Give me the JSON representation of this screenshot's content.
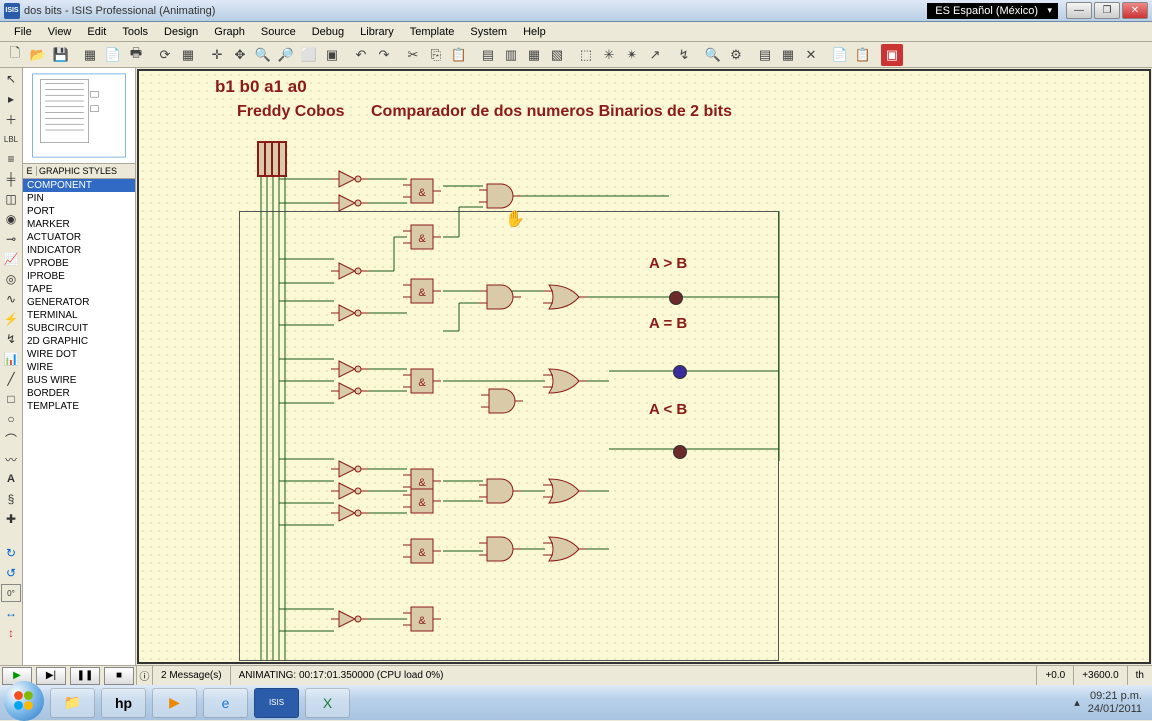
{
  "window": {
    "app_icon_text": "ISIS",
    "title": "dos bits - ISIS Professional (Animating)",
    "language": "ES Español (México)"
  },
  "menus": [
    "File",
    "View",
    "Edit",
    "Tools",
    "Design",
    "Graph",
    "Source",
    "Debug",
    "Library",
    "Template",
    "System",
    "Help"
  ],
  "sidepanel": {
    "header_btn": "E",
    "header_label": "GRAPHIC STYLES",
    "selected_index": 0,
    "items": [
      "COMPONENT",
      "PIN",
      "PORT",
      "MARKER",
      "ACTUATOR",
      "INDICATOR",
      "VPROBE",
      "IPROBE",
      "TAPE",
      "GENERATOR",
      "TERMINAL",
      "SUBCIRCUIT",
      "2D GRAPHIC",
      "WIRE DOT",
      "WIRE",
      "BUS WIRE",
      "BORDER",
      "TEMPLATE"
    ]
  },
  "schematic": {
    "text1": "b1 b0 a1 a0",
    "text2": "Freddy Cobos",
    "text3": "Comparador de dos numeros Binarios de 2 bits",
    "label_gt": "A > B",
    "label_eq": "A = B",
    "label_lt": "A < B",
    "probe_colors": {
      "gt": "#6b2a2a",
      "eq": "#3a2a9a",
      "lt": "#6b2a2a"
    },
    "title_color": "#8b1a1a",
    "gate_fill": "#d9cba8",
    "gate_stroke": "#8b1a1a",
    "wire_color": "#1a5a1a",
    "bg_color": "#fbf8d6"
  },
  "status": {
    "messages": "2 Message(s)",
    "sim": "ANIMATING: 00:17:01.350000 (CPU load 0%)",
    "coord_a": "+0.0",
    "coord_b": "+3600.0",
    "unit": "th"
  },
  "taskbar": {
    "time": "09:21 p.m.",
    "date": "24/01/2011"
  }
}
